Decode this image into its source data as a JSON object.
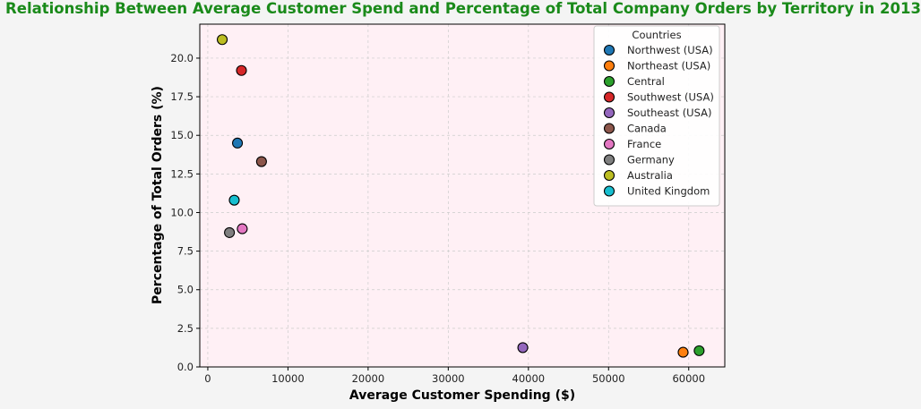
{
  "chart_data": {
    "type": "scatter",
    "title": "Relationship Between Average Customer Spend and Percentage of Total Company Orders by Territory in 2013",
    "xlabel": "Average Customer Spending ($)",
    "ylabel": "Percentage of Total Orders (%)",
    "xlim": [
      -1000,
      64500
    ],
    "ylim": [
      0,
      22.2
    ],
    "xticks": [
      0,
      10000,
      20000,
      30000,
      40000,
      50000,
      60000
    ],
    "xtick_labels": [
      "0",
      "10000",
      "20000",
      "30000",
      "40000",
      "50000",
      "60000"
    ],
    "yticks": [
      0,
      2.5,
      5,
      7.5,
      10,
      12.5,
      15,
      17.5,
      20
    ],
    "ytick_labels": [
      "0.0",
      "2.5",
      "5.0",
      "7.5",
      "10.0",
      "12.5",
      "15.0",
      "17.5",
      "20.0"
    ],
    "grid": true,
    "plot_background": "#fff0f5",
    "legend_title": "Countries",
    "legend_position": "top-right",
    "series": [
      {
        "name": "Northwest (USA)",
        "color": "#1f77b4",
        "x": 3700,
        "y": 14.5
      },
      {
        "name": "Northeast (USA)",
        "color": "#ff7f0e",
        "x": 59300,
        "y": 0.95
      },
      {
        "name": "Central",
        "color": "#2ca02c",
        "x": 61300,
        "y": 1.05
      },
      {
        "name": "Southwest (USA)",
        "color": "#d62728",
        "x": 4200,
        "y": 19.2
      },
      {
        "name": "Southeast (USA)",
        "color": "#9467bd",
        "x": 39300,
        "y": 1.25
      },
      {
        "name": "Canada",
        "color": "#8c564b",
        "x": 6700,
        "y": 13.3
      },
      {
        "name": "France",
        "color": "#e377c2",
        "x": 4300,
        "y": 8.95
      },
      {
        "name": "Germany",
        "color": "#7f7f7f",
        "x": 2700,
        "y": 8.7
      },
      {
        "name": "Australia",
        "color": "#bcbd22",
        "x": 1800,
        "y": 21.2
      },
      {
        "name": "United Kingdom",
        "color": "#17becf",
        "x": 3300,
        "y": 10.8
      }
    ]
  }
}
